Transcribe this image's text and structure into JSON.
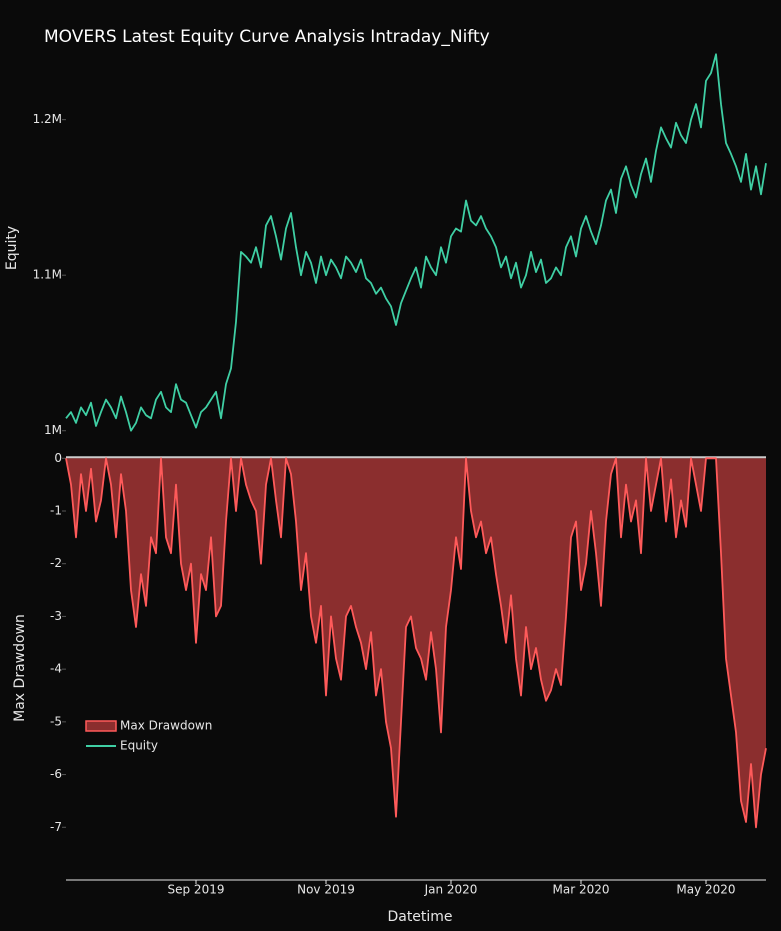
{
  "chart_data": {
    "type": "line",
    "title": "MOVERS Latest Equity Curve Analysis Intraday_Nifty",
    "x_label": "Datetime",
    "y_label": "Max Drawdown",
    "y2_label": "Equity",
    "categories": [
      null,
      null,
      null,
      null,
      null,
      null,
      null,
      null,
      null,
      null,
      null,
      null,
      null,
      null,
      null,
      null,
      null,
      null,
      null,
      null,
      null,
      null,
      null,
      null,
      null,
      null,
      "Sep 2019",
      null,
      null,
      null,
      null,
      null,
      null,
      null,
      null,
      null,
      null,
      null,
      null,
      null,
      null,
      null,
      null,
      null,
      null,
      null,
      null,
      null,
      null,
      null,
      null,
      null,
      "Nov 2019",
      null,
      null,
      null,
      null,
      null,
      null,
      null,
      null,
      null,
      null,
      null,
      null,
      null,
      null,
      null,
      null,
      null,
      null,
      null,
      null,
      null,
      null,
      null,
      null,
      "Jan 2020",
      null,
      null,
      null,
      null,
      null,
      null,
      null,
      null,
      null,
      null,
      null,
      null,
      null,
      null,
      null,
      null,
      null,
      null,
      null,
      null,
      null,
      null,
      null,
      null,
      null,
      "Mar 2020",
      null,
      null,
      null,
      null,
      null,
      null,
      null,
      null,
      null,
      null,
      null,
      null,
      null,
      null,
      null,
      null,
      null,
      null,
      null,
      null,
      null,
      null,
      null,
      null,
      "May 2020",
      null,
      null,
      null,
      null,
      null,
      null,
      null,
      null,
      null,
      null,
      null,
      null
    ],
    "ylim": [
      -8,
      0.1
    ],
    "yticks": [
      0,
      -1,
      -2,
      -3,
      -4,
      -5,
      -6,
      -7
    ],
    "y2lim": [
      987600,
      1248000
    ],
    "y2ticks": [
      {
        "value": 1000000,
        "label": "1M"
      },
      {
        "value": 1100000,
        "label": "1.1M"
      },
      {
        "value": 1200000,
        "label": "1.2M"
      }
    ],
    "legend": "lower left",
    "series": [
      {
        "name": "Max Drawdown",
        "color": "#ff5a5a",
        "fill": "#8b2e2e",
        "values": [
          0,
          -0.5,
          -1.5,
          -0.3,
          -1,
          -0.2,
          -1.2,
          -0.8,
          0,
          -0.5,
          -1.5,
          -0.3,
          -1,
          -2.5,
          -3.2,
          -2.2,
          -2.8,
          -1.5,
          -1.8,
          0,
          -1.5,
          -1.8,
          -0.5,
          -2,
          -2.5,
          -2,
          -3.5,
          -2.2,
          -2.5,
          -1.5,
          -3,
          -2.8,
          -1.2,
          0,
          -1,
          0,
          -0.5,
          -0.8,
          -1,
          -2,
          -0.5,
          0,
          -0.8,
          -1.5,
          0,
          -0.3,
          -1.2,
          -2.5,
          -1.8,
          -3,
          -3.5,
          -2.8,
          -4.5,
          -3,
          -3.8,
          -4.2,
          -3,
          -2.8,
          -3.2,
          -3.5,
          -4,
          -3.3,
          -4.5,
          -4,
          -5,
          -5.5,
          -6.8,
          -5,
          -3.2,
          -3,
          -3.6,
          -3.8,
          -4.2,
          -3.3,
          -4,
          -5.2,
          -3.2,
          -2.5,
          -1.5,
          -2.1,
          0,
          -1,
          -1.5,
          -1.2,
          -1.8,
          -1.5,
          -2.2,
          -2.8,
          -3.5,
          -2.6,
          -3.8,
          -4.5,
          -3.2,
          -4,
          -3.6,
          -4.2,
          -4.6,
          -4.4,
          -4,
          -4.3,
          -3,
          -1.5,
          -1.2,
          -2.5,
          -2,
          -1,
          -1.8,
          -2.8,
          -1.2,
          -0.3,
          0,
          -1.5,
          -0.5,
          -1.2,
          -0.8,
          -1.8,
          0,
          -1,
          -0.5,
          0,
          -1.2,
          -0.4,
          -1.5,
          -0.8,
          -1.3,
          0,
          -0.5,
          -1,
          0,
          0,
          0,
          -1.8,
          -3.8,
          -4.5,
          -5.2,
          -6.5,
          -6.9,
          -5.8,
          -7,
          -6,
          -5.5
        ]
      },
      {
        "name": "Equity",
        "color": "#3fcfa4",
        "axis": "y2",
        "values": [
          1008000,
          1012000,
          1005000,
          1015000,
          1010000,
          1018000,
          1003000,
          1012000,
          1020000,
          1015000,
          1008000,
          1022000,
          1012000,
          1000000,
          1005000,
          1015000,
          1010000,
          1008000,
          1020000,
          1025000,
          1015000,
          1012000,
          1030000,
          1020000,
          1018000,
          1010000,
          1002000,
          1012000,
          1015000,
          1020000,
          1025000,
          1008000,
          1030000,
          1040000,
          1070000,
          1115000,
          1112000,
          1108000,
          1118000,
          1105000,
          1132000,
          1138000,
          1125000,
          1110000,
          1130000,
          1140000,
          1118000,
          1100000,
          1115000,
          1108000,
          1095000,
          1112000,
          1100000,
          1110000,
          1105000,
          1098000,
          1112000,
          1108000,
          1102000,
          1110000,
          1098000,
          1095000,
          1088000,
          1092000,
          1085000,
          1080000,
          1068000,
          1082000,
          1090000,
          1098000,
          1105000,
          1092000,
          1112000,
          1105000,
          1100000,
          1118000,
          1108000,
          1125000,
          1130000,
          1128000,
          1148000,
          1135000,
          1132000,
          1138000,
          1130000,
          1125000,
          1118000,
          1105000,
          1112000,
          1098000,
          1108000,
          1092000,
          1100000,
          1115000,
          1102000,
          1110000,
          1095000,
          1098000,
          1105000,
          1100000,
          1118000,
          1125000,
          1112000,
          1130000,
          1138000,
          1128000,
          1120000,
          1132000,
          1148000,
          1155000,
          1140000,
          1162000,
          1170000,
          1158000,
          1150000,
          1165000,
          1175000,
          1160000,
          1180000,
          1195000,
          1188000,
          1182000,
          1198000,
          1190000,
          1185000,
          1200000,
          1210000,
          1195000,
          1225000,
          1230000,
          1242000,
          1210000,
          1185000,
          1178000,
          1170000,
          1160000,
          1178000,
          1155000,
          1170000,
          1152000,
          1172000
        ]
      }
    ]
  }
}
